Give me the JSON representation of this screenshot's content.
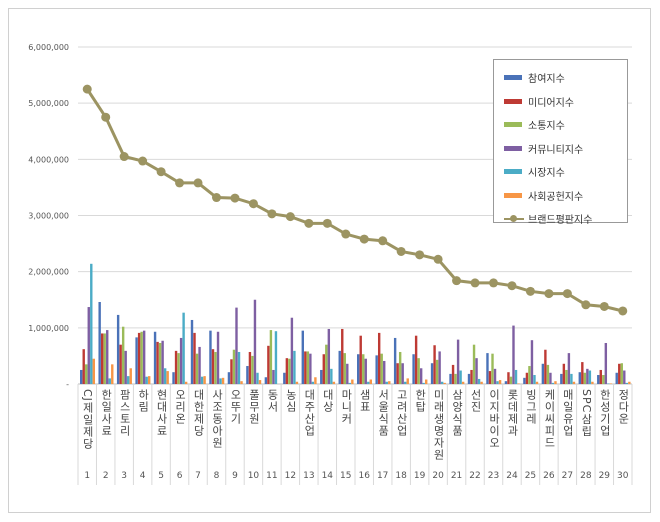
{
  "chart_data": {
    "type": "bar",
    "title": "",
    "xlabel": "",
    "ylabel": "",
    "ylim": [
      0,
      6000000
    ],
    "yticks": [
      "-",
      "1,000,000",
      "2,000,000",
      "3,000,000",
      "4,000,000",
      "5,000,000",
      "6,000,000"
    ],
    "grid": true,
    "legend_position": "top-right",
    "numbers": [
      "1",
      "2",
      "3",
      "4",
      "5",
      "6",
      "7",
      "8",
      "9",
      "10",
      "11",
      "12",
      "13",
      "14",
      "15",
      "16",
      "17",
      "18",
      "19",
      "20",
      "21",
      "22",
      "23",
      "24",
      "25",
      "26",
      "27",
      "28",
      "29",
      "30"
    ],
    "categories": [
      "CJ제일제당",
      "한일사료",
      "팜스토리",
      "하림",
      "현대사료",
      "오리온",
      "대한제당",
      "사조동아원",
      "오뚜기",
      "풀무원",
      "동서",
      "농심",
      "대주산업",
      "대상",
      "마니커",
      "샘표",
      "서울식품",
      "고려산업",
      "한탑",
      "미래생명자원",
      "삼양식품",
      "선진",
      "이지바이오",
      "롯데제과",
      "빙그레",
      "케이씨피드",
      "매일유업",
      "SPC삼립",
      "한성기업",
      "정다운"
    ],
    "series": [
      {
        "name": "참여지수",
        "color": "#4a72b8",
        "type": "bar",
        "values": [
          250000,
          1460000,
          1230000,
          830000,
          930000,
          210000,
          1140000,
          950000,
          210000,
          320000,
          120000,
          200000,
          950000,
          250000,
          590000,
          530000,
          510000,
          820000,
          530000,
          370000,
          180000,
          180000,
          550000,
          50000,
          110000,
          360000,
          180000,
          210000,
          160000,
          200000
        ]
      },
      {
        "name": "미디어지수",
        "color": "#be3a34",
        "type": "bar",
        "values": [
          620000,
          900000,
          700000,
          910000,
          750000,
          590000,
          910000,
          620000,
          440000,
          570000,
          680000,
          460000,
          580000,
          530000,
          980000,
          860000,
          910000,
          370000,
          860000,
          690000,
          340000,
          250000,
          230000,
          210000,
          200000,
          610000,
          360000,
          390000,
          250000,
          360000
        ]
      },
      {
        "name": "소통지수",
        "color": "#9bbb59",
        "type": "bar",
        "values": [
          350000,
          900000,
          1020000,
          930000,
          730000,
          550000,
          540000,
          570000,
          610000,
          500000,
          960000,
          450000,
          580000,
          700000,
          550000,
          530000,
          540000,
          570000,
          460000,
          430000,
          180000,
          700000,
          540000,
          130000,
          320000,
          340000,
          250000,
          200000,
          160000,
          370000
        ]
      },
      {
        "name": "커뮤니티지수",
        "color": "#7e5fa2",
        "type": "bar",
        "values": [
          1370000,
          960000,
          590000,
          950000,
          770000,
          820000,
          660000,
          930000,
          1360000,
          1500000,
          250000,
          1180000,
          540000,
          980000,
          360000,
          450000,
          410000,
          370000,
          280000,
          580000,
          790000,
          460000,
          270000,
          1040000,
          780000,
          200000,
          550000,
          270000,
          730000,
          240000
        ]
      },
      {
        "name": "시장지수",
        "color": "#4bacc6",
        "type": "bar",
        "values": [
          2140000,
          100000,
          140000,
          130000,
          280000,
          1270000,
          130000,
          100000,
          570000,
          200000,
          940000,
          590000,
          40000,
          270000,
          20000,
          40000,
          40000,
          40000,
          20000,
          40000,
          240000,
          90000,
          50000,
          250000,
          160000,
          20000,
          180000,
          240000,
          10000,
          20000
        ]
      },
      {
        "name": "사회공헌지수",
        "color": "#f79646",
        "type": "bar",
        "values": [
          450000,
          350000,
          280000,
          140000,
          230000,
          40000,
          140000,
          110000,
          50000,
          70000,
          0,
          40000,
          120000,
          40000,
          80000,
          80000,
          50000,
          100000,
          80000,
          20000,
          40000,
          40000,
          70000,
          10000,
          40000,
          50000,
          40000,
          40000,
          10000,
          40000
        ]
      },
      {
        "name": "브랜드평판지수",
        "color": "#9c9462",
        "type": "line",
        "values": [
          5250000,
          4750000,
          4050000,
          3970000,
          3780000,
          3580000,
          3580000,
          3320000,
          3310000,
          3210000,
          3030000,
          2980000,
          2860000,
          2860000,
          2670000,
          2580000,
          2550000,
          2360000,
          2300000,
          2220000,
          1840000,
          1800000,
          1800000,
          1750000,
          1650000,
          1610000,
          1610000,
          1410000,
          1380000,
          1300000
        ]
      }
    ]
  }
}
